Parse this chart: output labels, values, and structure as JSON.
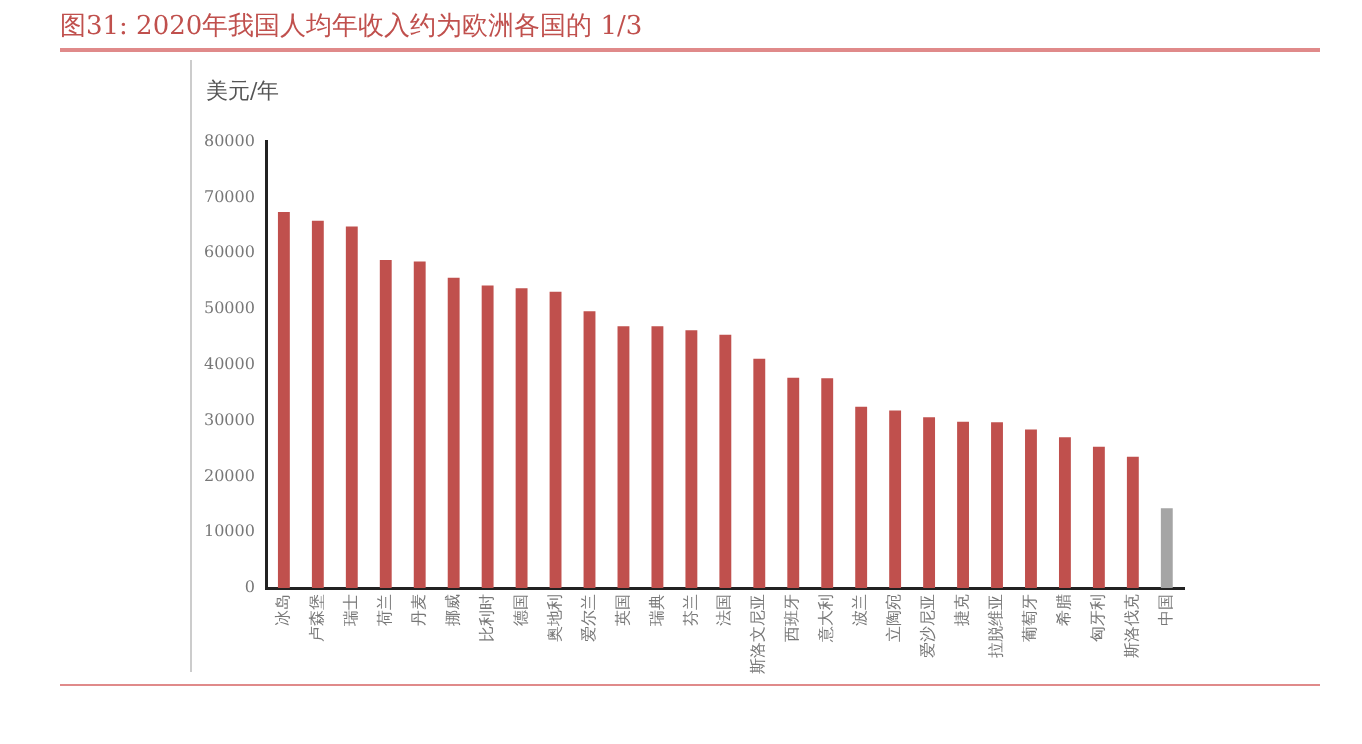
{
  "chart_data": {
    "type": "bar",
    "title": "图31:   2020年我国人均年收入约为欧洲各国的 1/3",
    "ylabel": "美元/年",
    "categories": [
      "冰岛",
      "卢森堡",
      "瑞士",
      "荷兰",
      "丹麦",
      "挪威",
      "比利时",
      "德国",
      "奥地利",
      "爱尔兰",
      "英国",
      "瑞典",
      "芬兰",
      "法国",
      "斯洛文尼亚",
      "西班牙",
      "意大利",
      "波兰",
      "立陶宛",
      "爱沙尼亚",
      "捷克",
      "拉脱维亚",
      "葡萄牙",
      "希腊",
      "匈牙利",
      "斯洛伐克",
      "中国"
    ],
    "values": [
      67400,
      65800,
      64800,
      58800,
      58500,
      55600,
      54200,
      53700,
      53100,
      49600,
      46900,
      46900,
      46200,
      45400,
      41100,
      37700,
      37600,
      32500,
      31800,
      30600,
      29800,
      29700,
      28400,
      27000,
      25300,
      23500,
      14300
    ],
    "colors": [
      "#c0504d",
      "#c0504d",
      "#c0504d",
      "#c0504d",
      "#c0504d",
      "#c0504d",
      "#c0504d",
      "#c0504d",
      "#c0504d",
      "#c0504d",
      "#c0504d",
      "#c0504d",
      "#c0504d",
      "#c0504d",
      "#c0504d",
      "#c0504d",
      "#c0504d",
      "#c0504d",
      "#c0504d",
      "#c0504d",
      "#c0504d",
      "#c0504d",
      "#c0504d",
      "#c0504d",
      "#c0504d",
      "#c0504d",
      "#a5a5a5"
    ],
    "ylim": [
      0,
      80000
    ],
    "yticks": [
      0,
      10000,
      20000,
      30000,
      40000,
      50000,
      60000,
      70000,
      80000
    ],
    "grid": false,
    "legend": false
  }
}
